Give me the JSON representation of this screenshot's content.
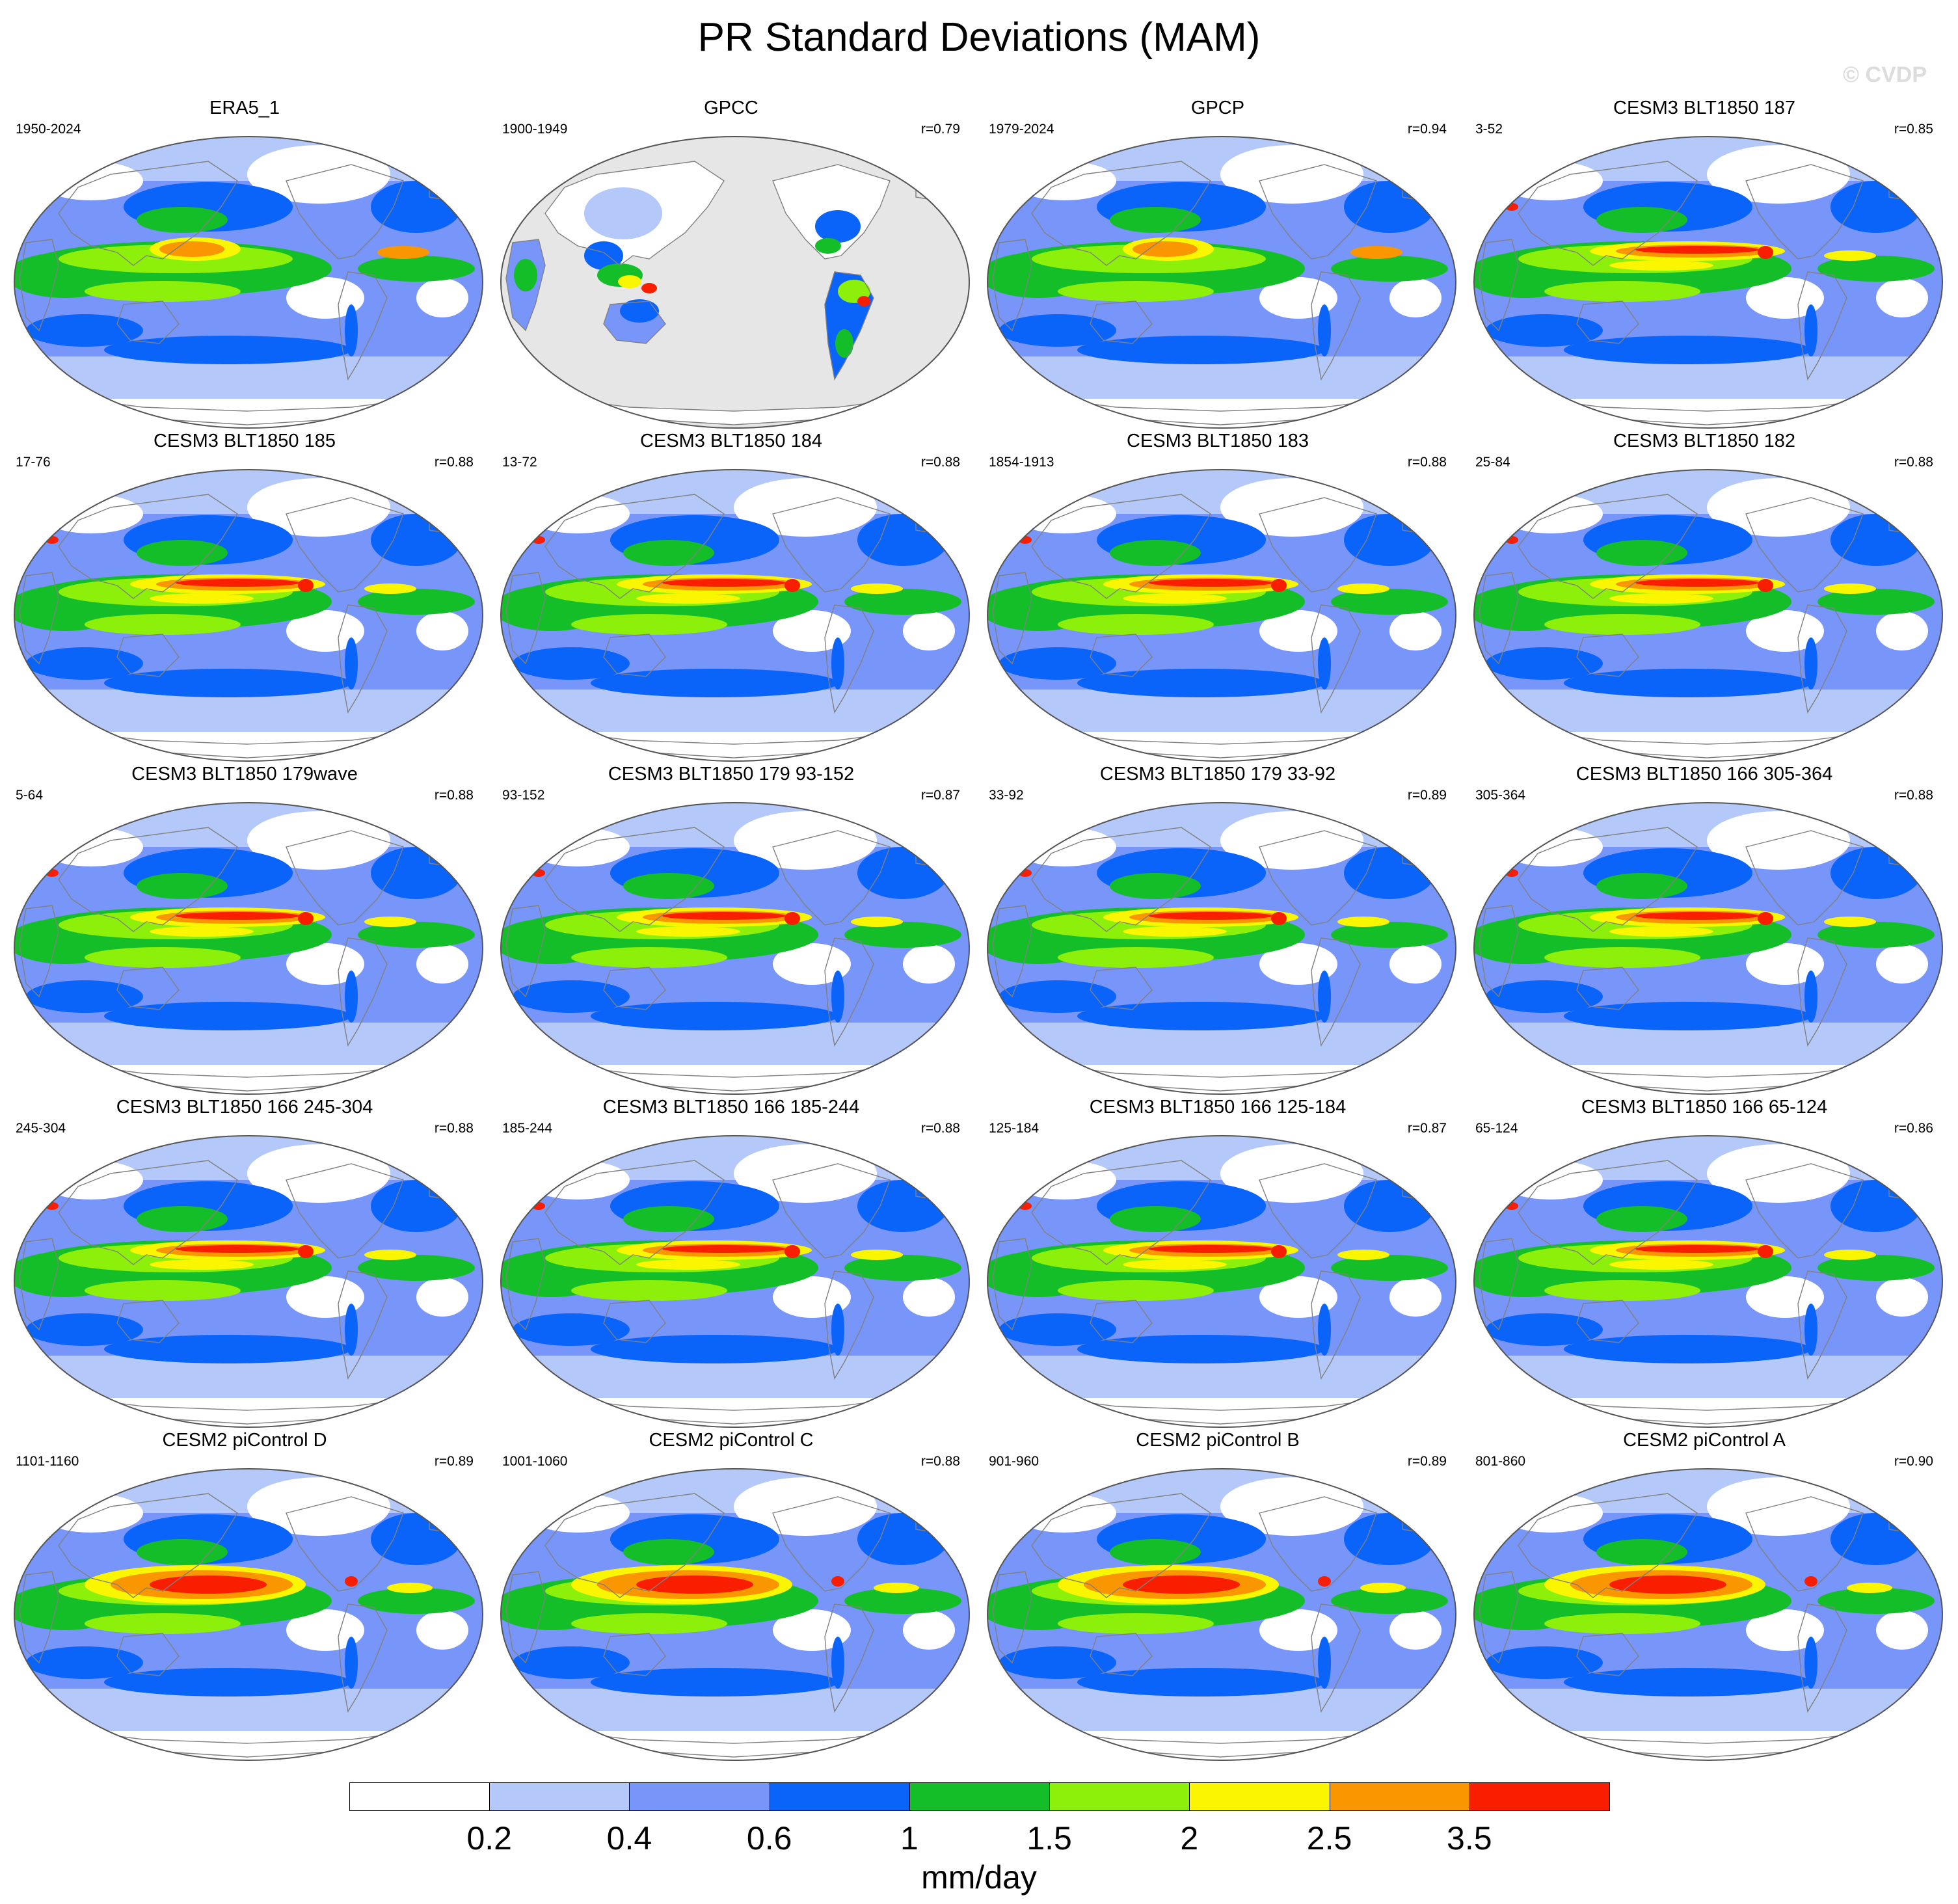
{
  "title": "PR Standard Deviations (MAM)",
  "watermark": "© CVDP",
  "colorbar": {
    "units": "mm/day",
    "tick_labels": [
      "0.2",
      "0.4",
      "0.6",
      "1",
      "1.5",
      "2",
      "2.5",
      "3.5"
    ],
    "colors": [
      "#ffffff",
      "#b4c8fa",
      "#7896fa",
      "#0a64fa",
      "#14be28",
      "#8cf00a",
      "#faf500",
      "#fa9600",
      "#fa1e00"
    ]
  },
  "map_colors": {
    "land_missing": "#e6e6e6",
    "coast": "#808080",
    "outline": "#555555"
  },
  "panels": [
    {
      "title": "ERA5_1",
      "years": "1950-2024",
      "r": "",
      "style": "obs"
    },
    {
      "title": "GPCC",
      "years": "1900-1949",
      "r": "r=0.79",
      "style": "land"
    },
    {
      "title": "GPCP",
      "years": "1979-2024",
      "r": "r=0.94",
      "style": "obs"
    },
    {
      "title": "CESM3 BLT1850 187",
      "years": "3-52",
      "r": "r=0.85",
      "style": "model"
    },
    {
      "title": "CESM3 BLT1850 185",
      "years": "17-76",
      "r": "r=0.88",
      "style": "model"
    },
    {
      "title": "CESM3 BLT1850 184",
      "years": "13-72",
      "r": "r=0.88",
      "style": "model"
    },
    {
      "title": "CESM3 BLT1850 183",
      "years": "1854-1913",
      "r": "r=0.88",
      "style": "model"
    },
    {
      "title": "CESM3 BLT1850 182",
      "years": "25-84",
      "r": "r=0.88",
      "style": "model"
    },
    {
      "title": "CESM3 BLT1850 179wave",
      "years": "5-64",
      "r": "r=0.88",
      "style": "model"
    },
    {
      "title": "CESM3 BLT1850 179 93-152",
      "years": "93-152",
      "r": "r=0.87",
      "style": "model"
    },
    {
      "title": "CESM3 BLT1850 179 33-92",
      "years": "33-92",
      "r": "r=0.89",
      "style": "model"
    },
    {
      "title": "CESM3 BLT1850 166 305-364",
      "years": "305-364",
      "r": "r=0.88",
      "style": "model"
    },
    {
      "title": "CESM3 BLT1850 166 245-304",
      "years": "245-304",
      "r": "r=0.88",
      "style": "model"
    },
    {
      "title": "CESM3 BLT1850 166 185-244",
      "years": "185-244",
      "r": "r=0.88",
      "style": "model"
    },
    {
      "title": "CESM3 BLT1850 166 125-184",
      "years": "125-184",
      "r": "r=0.87",
      "style": "model"
    },
    {
      "title": "CESM3 BLT1850 166 65-124",
      "years": "65-124",
      "r": "r=0.86",
      "style": "model"
    },
    {
      "title": "CESM2 piControl D",
      "years": "1101-1160",
      "r": "r=0.89",
      "style": "cesm2"
    },
    {
      "title": "CESM2 piControl C",
      "years": "1001-1060",
      "r": "r=0.88",
      "style": "cesm2"
    },
    {
      "title": "CESM2 piControl B",
      "years": "901-960",
      "r": "r=0.89",
      "style": "cesm2"
    },
    {
      "title": "CESM2 piControl A",
      "years": "801-860",
      "r": "r=0.90",
      "style": "cesm2"
    }
  ]
}
